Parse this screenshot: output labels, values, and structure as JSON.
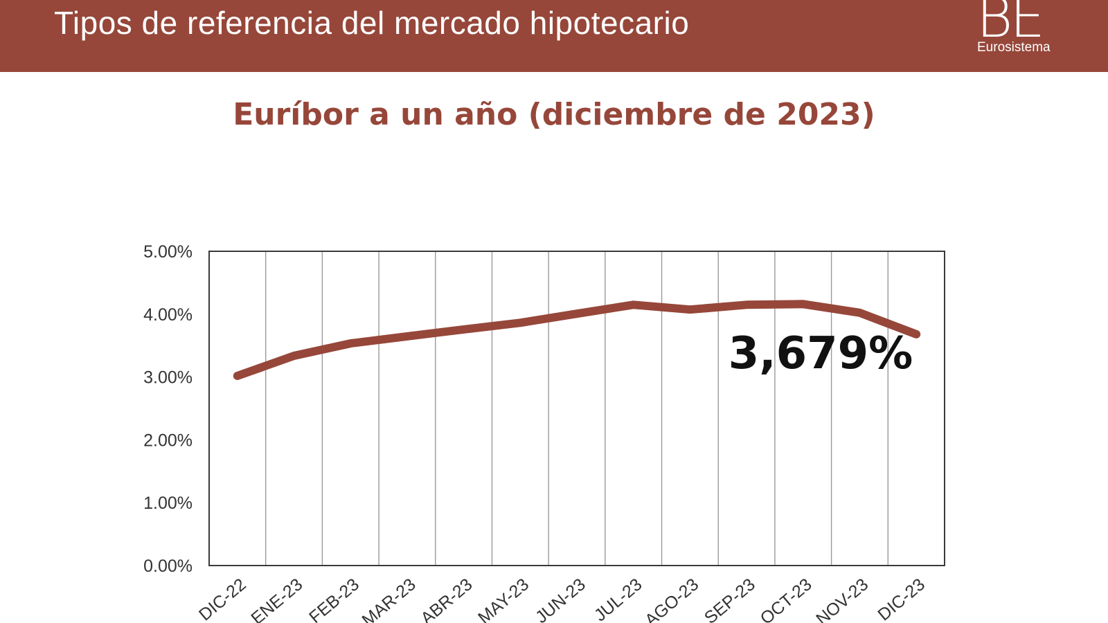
{
  "header": {
    "title": "Tipos de referencia del mercado hipotecario",
    "logo_mark": "BE",
    "logo_sub": "Eurosistema",
    "color": "#96473a"
  },
  "chart_data": {
    "type": "line",
    "title": "Euríbor a un año (diciembre de 2023)",
    "xlabel": "",
    "ylabel": "",
    "categories": [
      "DIC-22",
      "ENE-23",
      "FEB-23",
      "MAR-23",
      "ABR-23",
      "MAY-23",
      "JUN-23",
      "JUL-23",
      "AGO-23",
      "SEP-23",
      "OCT-23",
      "NOV-23",
      "DIC-23"
    ],
    "series": [
      {
        "values": [
          3.018,
          3.337,
          3.534,
          3.647,
          3.757,
          3.862,
          4.007,
          4.149,
          4.073,
          4.149,
          4.16,
          4.022,
          3.679
        ],
        "color": "#96473a"
      }
    ],
    "yticks": [
      "0.00%",
      "1.00%",
      "2.00%",
      "3.00%",
      "4.00%",
      "5.00%"
    ],
    "ylim": [
      0,
      5
    ],
    "grid": "vertical",
    "annotation": "3,679%"
  }
}
